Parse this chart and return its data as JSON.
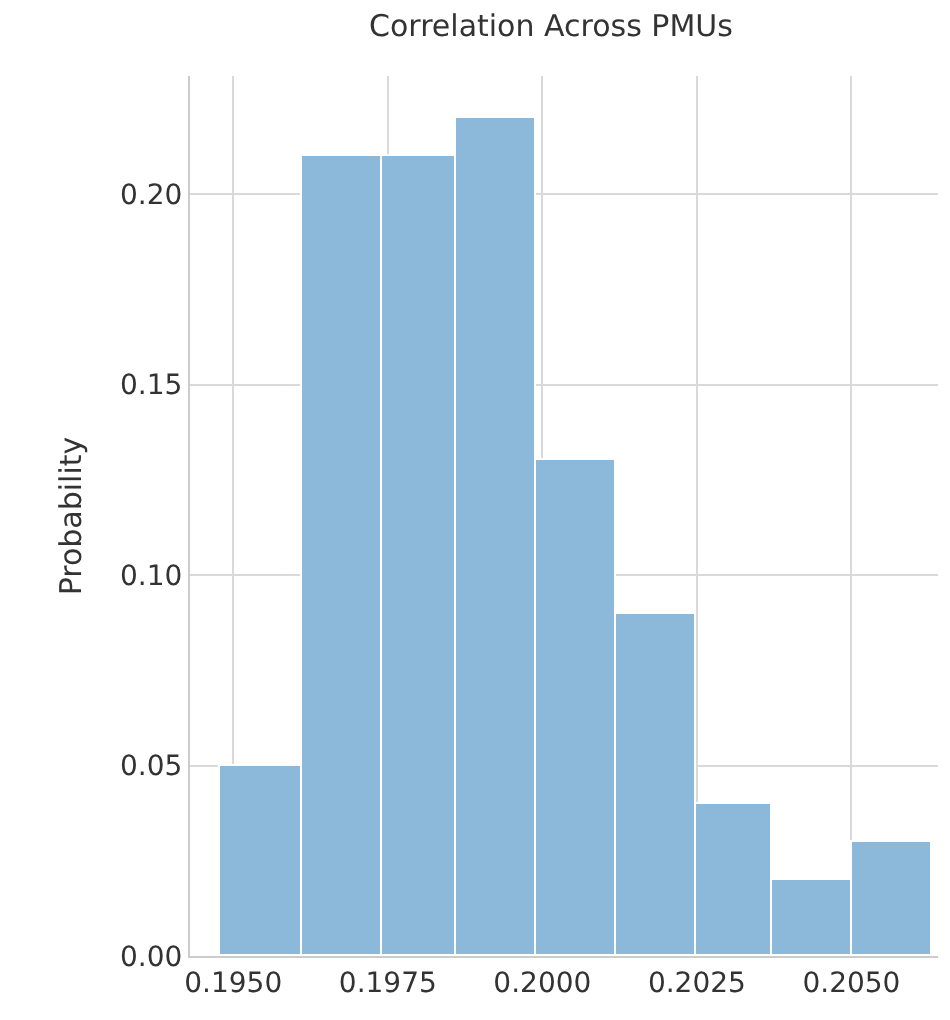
{
  "chart_data": {
    "type": "histogram",
    "title": "Correlation Across PMUs",
    "ylabel": "Probability",
    "bins": [
      0.1948,
      0.1961,
      0.1974,
      0.1986,
      0.1999,
      0.2012,
      0.2025,
      0.2037,
      0.205,
      0.2063
    ],
    "values": [
      0.05,
      0.21,
      0.21,
      0.22,
      0.13,
      0.09,
      0.04,
      0.02,
      0.03
    ],
    "color": "#8cb8d9",
    "xlim": [
      0.1943,
      0.2064
    ],
    "xticks": [
      {
        "value": 0.195,
        "label": "0.1950"
      },
      {
        "value": 0.1975,
        "label": "0.1975"
      },
      {
        "value": 0.2,
        "label": "0.2000"
      },
      {
        "value": 0.2025,
        "label": "0.2025"
      },
      {
        "value": 0.205,
        "label": "0.2050"
      }
    ],
    "ylim": [
      0,
      0.231
    ],
    "yticks": [
      {
        "value": 0,
        "label": "0.00"
      },
      {
        "value": 0.05,
        "label": "0.05"
      },
      {
        "value": 0.1,
        "label": "0.10"
      },
      {
        "value": 0.15,
        "label": "0.15"
      },
      {
        "value": 0.2,
        "label": "0.20"
      }
    ],
    "grid": true
  }
}
